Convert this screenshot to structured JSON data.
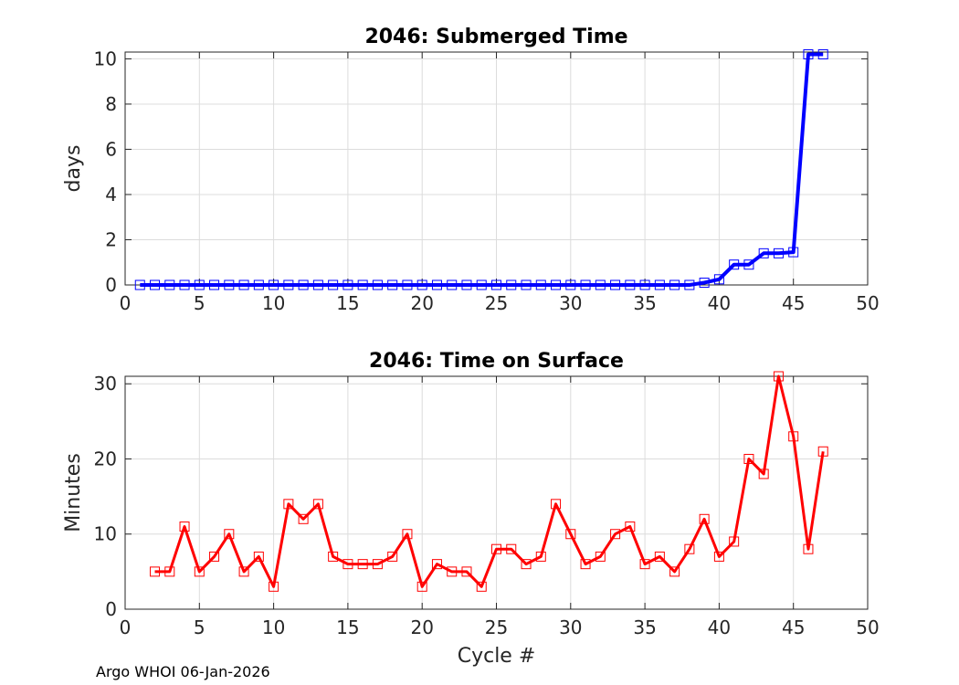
{
  "footer": "Argo WHOI 06-Jan-2026",
  "chart_data": [
    {
      "type": "line",
      "title": "2046: Submerged Time",
      "xlabel": "",
      "ylabel": "days",
      "xlim": [
        0,
        50
      ],
      "ylim": [
        0,
        10.3
      ],
      "xticks": [
        0,
        5,
        10,
        15,
        20,
        25,
        30,
        35,
        40,
        45,
        50
      ],
      "yticks": [
        0,
        2,
        4,
        6,
        8,
        10
      ],
      "grid": true,
      "series": [
        {
          "name": "Submerged Time",
          "color": "#0000ff",
          "marker": "square",
          "x": [
            1,
            2,
            3,
            4,
            5,
            6,
            7,
            8,
            9,
            10,
            11,
            12,
            13,
            14,
            15,
            16,
            17,
            18,
            19,
            20,
            21,
            22,
            23,
            24,
            25,
            26,
            27,
            28,
            29,
            30,
            31,
            32,
            33,
            34,
            35,
            36,
            37,
            38,
            39,
            40,
            41,
            42,
            43,
            44,
            45,
            46,
            47
          ],
          "y": [
            0,
            0,
            0,
            0,
            0,
            0,
            0,
            0,
            0,
            0,
            0,
            0,
            0,
            0,
            0,
            0,
            0,
            0,
            0,
            0,
            0,
            0,
            0,
            0,
            0,
            0,
            0,
            0,
            0,
            0,
            0,
            0,
            0,
            0,
            0,
            0,
            0,
            0,
            0.1,
            0.25,
            0.9,
            0.9,
            1.4,
            1.4,
            1.45,
            10.2,
            10.2
          ]
        }
      ]
    },
    {
      "type": "line",
      "title": "2046: Time on Surface",
      "xlabel": "Cycle #",
      "ylabel": "Minutes",
      "xlim": [
        0,
        50
      ],
      "ylim": [
        0,
        31
      ],
      "xticks": [
        0,
        5,
        10,
        15,
        20,
        25,
        30,
        35,
        40,
        45,
        50
      ],
      "yticks": [
        0,
        10,
        20,
        30
      ],
      "grid": true,
      "series": [
        {
          "name": "Time on Surface",
          "color": "#ff0000",
          "marker": "square",
          "x": [
            2,
            3,
            4,
            5,
            6,
            7,
            8,
            9,
            10,
            11,
            12,
            13,
            14,
            15,
            16,
            17,
            18,
            19,
            20,
            21,
            22,
            23,
            24,
            25,
            26,
            27,
            28,
            29,
            30,
            31,
            32,
            33,
            34,
            35,
            36,
            37,
            38,
            39,
            40,
            41,
            42,
            43,
            44,
            45,
            46,
            47
          ],
          "y": [
            5,
            5,
            11,
            5,
            7,
            10,
            5,
            7,
            3,
            14,
            12,
            14,
            7,
            6,
            6,
            6,
            7,
            10,
            3,
            6,
            5,
            5,
            3,
            8,
            8,
            6,
            7,
            14,
            10,
            6,
            7,
            10,
            11,
            6,
            7,
            5,
            8,
            12,
            7,
            9,
            20,
            18,
            31,
            23,
            8,
            21
          ]
        }
      ]
    }
  ]
}
